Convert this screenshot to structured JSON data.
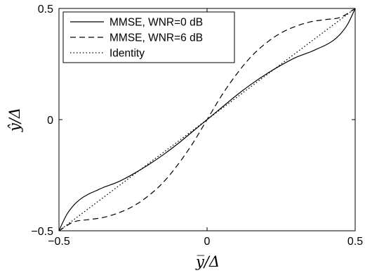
{
  "chart_data": {
    "type": "line",
    "title": "",
    "xlabel": "y̅/Δ",
    "ylabel": "ŷ/Δ",
    "xlim": [
      -0.5,
      0.5
    ],
    "ylim": [
      -0.5,
      0.5
    ],
    "x_ticks": [
      -0.5,
      0,
      0.5
    ],
    "y_ticks": [
      -0.5,
      0,
      0.5
    ],
    "x_tick_labels": [
      "−0.5",
      "0",
      "0.5"
    ],
    "y_tick_labels": [
      "−0.5",
      "0",
      "0.5"
    ],
    "grid": false,
    "legend_position": "top-left",
    "series": [
      {
        "name": "MMSE, WNR=0 dB",
        "style": "solid",
        "color": "#000000",
        "x": [
          -0.5,
          -0.475,
          -0.45,
          -0.425,
          -0.4,
          -0.375,
          -0.35,
          -0.3,
          -0.25,
          -0.2,
          -0.15,
          -0.1,
          -0.05,
          0,
          0.05,
          0.1,
          0.15,
          0.2,
          0.25,
          0.3,
          0.35,
          0.375,
          0.4,
          0.425,
          0.45,
          0.475,
          0.5
        ],
        "y": [
          -0.5,
          -0.43,
          -0.385,
          -0.355,
          -0.335,
          -0.32,
          -0.305,
          -0.28,
          -0.245,
          -0.205,
          -0.16,
          -0.11,
          -0.055,
          0,
          0.055,
          0.11,
          0.16,
          0.205,
          0.245,
          0.28,
          0.305,
          0.32,
          0.335,
          0.355,
          0.385,
          0.43,
          0.5
        ]
      },
      {
        "name": "MMSE, WNR=6 dB",
        "style": "dashed",
        "color": "#000000",
        "x": [
          -0.5,
          -0.45,
          -0.4,
          -0.35,
          -0.3,
          -0.25,
          -0.2,
          -0.15,
          -0.1,
          -0.05,
          0,
          0.05,
          0.1,
          0.15,
          0.2,
          0.25,
          0.3,
          0.35,
          0.4,
          0.45,
          0.5
        ],
        "y": [
          -0.5,
          -0.46,
          -0.45,
          -0.44,
          -0.42,
          -0.39,
          -0.345,
          -0.285,
          -0.205,
          -0.11,
          0,
          0.11,
          0.205,
          0.285,
          0.345,
          0.39,
          0.42,
          0.44,
          0.45,
          0.46,
          0.5
        ]
      },
      {
        "name": "Identity",
        "style": "dotted",
        "color": "#000000",
        "x": [
          -0.5,
          0.5
        ],
        "y": [
          -0.5,
          0.5
        ]
      }
    ]
  }
}
